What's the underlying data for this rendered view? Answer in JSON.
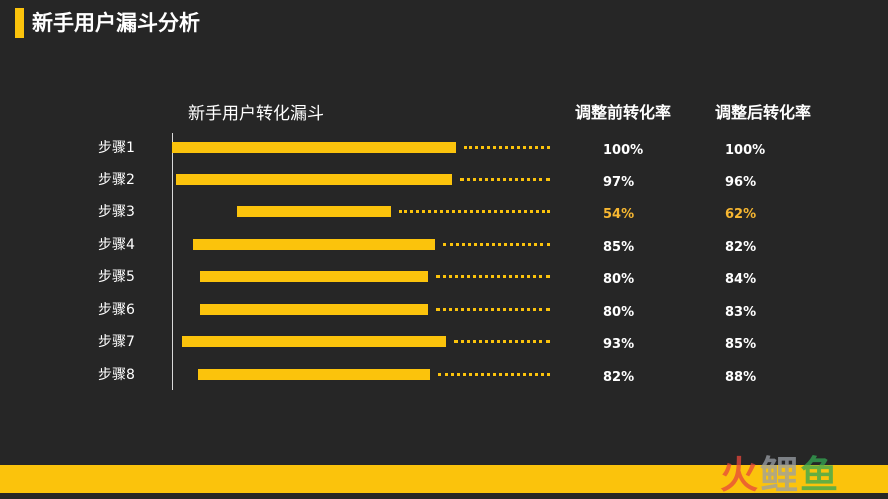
{
  "header": {
    "title": "新手用户漏斗分析"
  },
  "colors": {
    "accent": "#fbc30c",
    "highlight": "#f7b731",
    "background": "#262626"
  },
  "chart_data": {
    "type": "bar",
    "title": "新手用户转化漏斗",
    "categories": [
      "步骤1",
      "步骤2",
      "步骤3",
      "步骤4",
      "步骤5",
      "步骤6",
      "步骤7",
      "步骤8"
    ],
    "values": [
      100,
      97,
      54,
      85,
      80,
      80,
      93,
      82
    ],
    "series": [
      {
        "name": "调整前转化率",
        "values": [
          "100%",
          "97%",
          "54%",
          "85%",
          "80%",
          "80%",
          "93%",
          "82%"
        ]
      },
      {
        "name": "调整后转化率",
        "values": [
          "100%",
          "96%",
          "62%",
          "82%",
          "84%",
          "83%",
          "85%",
          "88%"
        ]
      }
    ],
    "highlighted_category": "步骤3"
  },
  "logo": {
    "text": "火鲤鱼"
  }
}
